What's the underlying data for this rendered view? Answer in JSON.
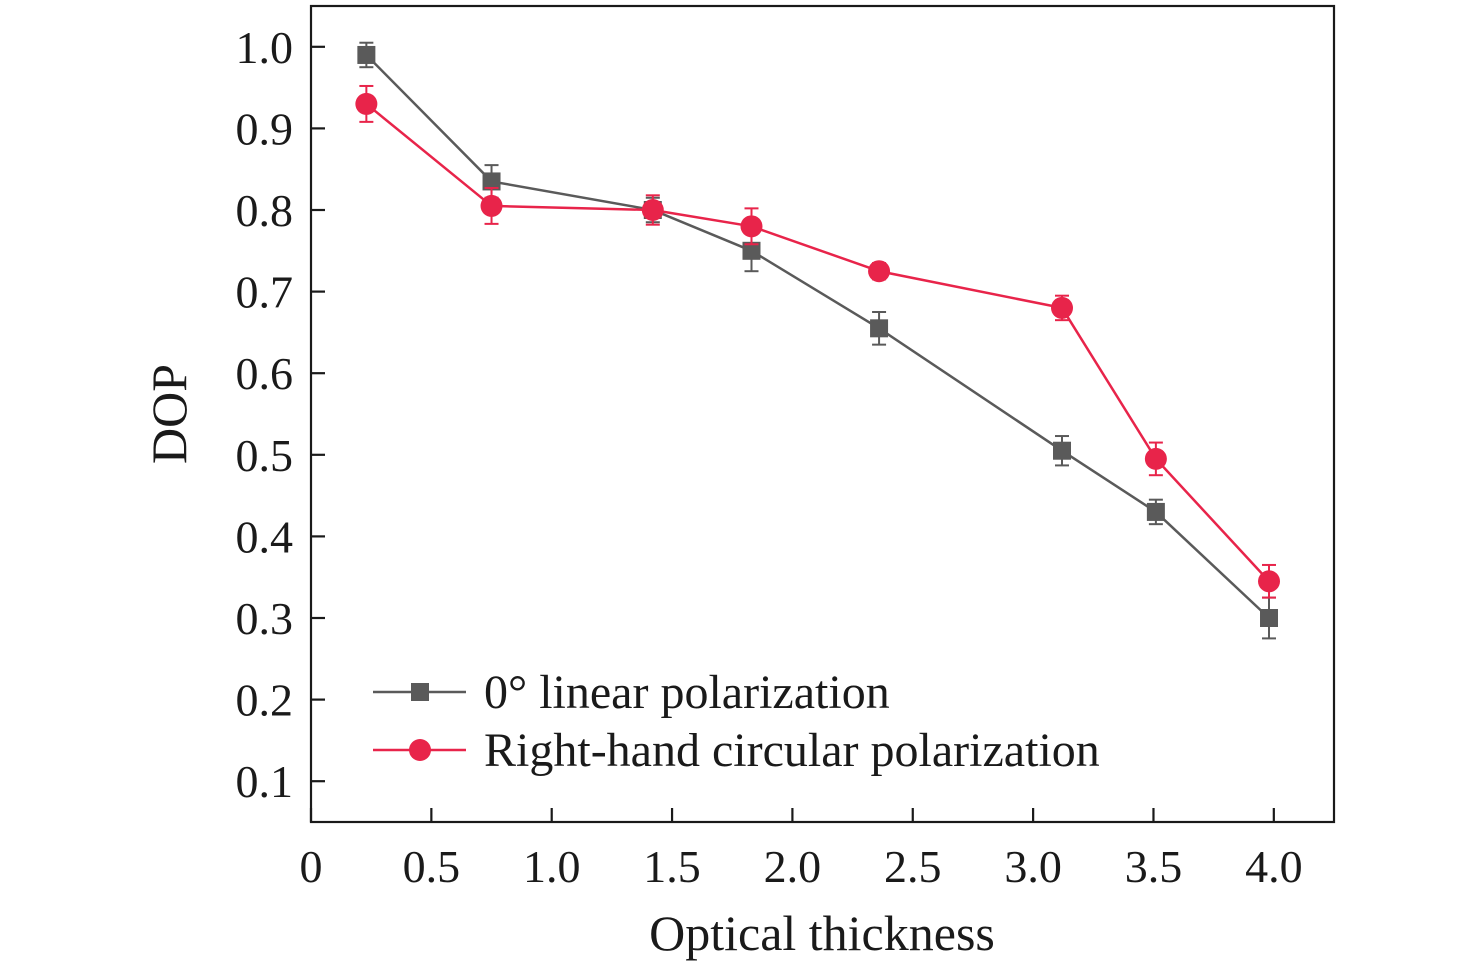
{
  "chart_data": {
    "type": "line",
    "title": "",
    "xlabel": "Optical thickness",
    "ylabel": "DOP",
    "xlim": [
      0,
      4.25
    ],
    "ylim": [
      0.05,
      1.05
    ],
    "xticks": [
      0,
      0.5,
      1.0,
      1.5,
      2.0,
      2.5,
      3.0,
      3.5,
      4.0
    ],
    "xtick_labels": [
      "0",
      "0.5",
      "1.0",
      "1.5",
      "2.0",
      "2.5",
      "3.0",
      "3.5",
      "4.0"
    ],
    "yticks": [
      0.1,
      0.2,
      0.3,
      0.4,
      0.5,
      0.6,
      0.7,
      0.8,
      0.9,
      1.0
    ],
    "ytick_labels": [
      "0.1",
      "0.2",
      "0.3",
      "0.4",
      "0.5",
      "0.6",
      "0.7",
      "0.8",
      "0.9",
      "1.0"
    ],
    "grid": false,
    "legend_position": "bottom-left",
    "series": [
      {
        "name": "0° linear polarization",
        "color": "#5a5a5a",
        "marker": "square",
        "x": [
          0.23,
          0.75,
          1.42,
          1.83,
          2.36,
          3.12,
          3.51,
          3.98
        ],
        "y": [
          0.99,
          0.835,
          0.8,
          0.75,
          0.655,
          0.505,
          0.43,
          0.3
        ],
        "error": [
          0.015,
          0.02,
          0.015,
          0.025,
          0.02,
          0.018,
          0.015,
          0.025
        ]
      },
      {
        "name": "Right-hand circular polarization",
        "color": "#e8244a",
        "marker": "circle",
        "x": [
          0.23,
          0.75,
          1.42,
          1.83,
          2.36,
          3.12,
          3.51,
          3.98
        ],
        "y": [
          0.93,
          0.805,
          0.8,
          0.78,
          0.725,
          0.68,
          0.495,
          0.345
        ],
        "error": [
          0.022,
          0.022,
          0.018,
          0.022,
          0.01,
          0.015,
          0.02,
          0.02
        ]
      }
    ]
  }
}
